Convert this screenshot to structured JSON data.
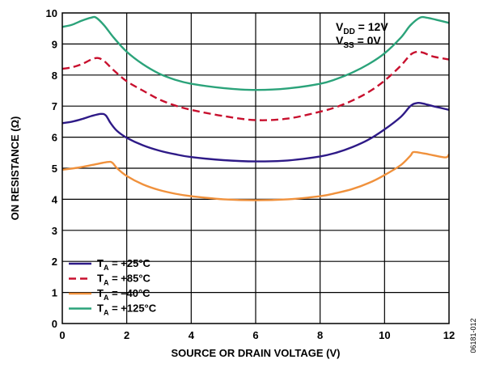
{
  "chart_data": {
    "type": "line",
    "title": "",
    "xlabel": "SOURCE OR DRAIN VOLTAGE (V)",
    "ylabel": "ON RESISTANCE (Ω)",
    "xlim": [
      0,
      12
    ],
    "ylim": [
      0,
      10
    ],
    "x_ticks": [
      "0",
      "2",
      "4",
      "6",
      "8",
      "10",
      "12"
    ],
    "y_ticks": [
      "0",
      "1",
      "2",
      "3",
      "4",
      "5",
      "6",
      "7",
      "8",
      "9",
      "10"
    ],
    "grid": true,
    "legend_position": "bottom-left",
    "conditions": [
      {
        "main": "V",
        "sub": "DD",
        "rest": " = 12V"
      },
      {
        "main": "V",
        "sub": "SS",
        "rest": " = 0V"
      }
    ],
    "figure_id": "06181-012",
    "series": [
      {
        "legend_main": "T",
        "legend_sub": "A",
        "legend_rest": " = +25°C",
        "color": "#2e1a87",
        "dash": "solid",
        "points": [
          [
            0,
            6.45
          ],
          [
            0.3,
            6.5
          ],
          [
            0.6,
            6.58
          ],
          [
            0.9,
            6.68
          ],
          [
            1.2,
            6.75
          ],
          [
            1.35,
            6.7
          ],
          [
            1.5,
            6.45
          ],
          [
            1.7,
            6.2
          ],
          [
            2,
            5.98
          ],
          [
            2.5,
            5.74
          ],
          [
            3,
            5.57
          ],
          [
            3.5,
            5.45
          ],
          [
            4,
            5.36
          ],
          [
            5,
            5.26
          ],
          [
            6,
            5.22
          ],
          [
            7,
            5.25
          ],
          [
            8,
            5.38
          ],
          [
            8.5,
            5.5
          ],
          [
            9,
            5.68
          ],
          [
            9.5,
            5.92
          ],
          [
            10,
            6.25
          ],
          [
            10.5,
            6.65
          ],
          [
            10.8,
            7.0
          ],
          [
            11,
            7.1
          ],
          [
            11.2,
            7.08
          ],
          [
            11.5,
            7.0
          ],
          [
            12,
            6.88
          ]
        ]
      },
      {
        "legend_main": "T",
        "legend_sub": "A",
        "legend_rest": " = +85°C",
        "color": "#c8102e",
        "dash": "dashed",
        "points": [
          [
            0,
            8.2
          ],
          [
            0.3,
            8.25
          ],
          [
            0.6,
            8.35
          ],
          [
            0.9,
            8.5
          ],
          [
            1.1,
            8.55
          ],
          [
            1.3,
            8.45
          ],
          [
            1.6,
            8.15
          ],
          [
            2,
            7.8
          ],
          [
            2.5,
            7.5
          ],
          [
            3,
            7.22
          ],
          [
            3.5,
            7.02
          ],
          [
            4,
            6.88
          ],
          [
            5,
            6.68
          ],
          [
            6,
            6.55
          ],
          [
            7,
            6.6
          ],
          [
            8,
            6.82
          ],
          [
            8.5,
            6.97
          ],
          [
            9,
            7.18
          ],
          [
            9.5,
            7.45
          ],
          [
            10,
            7.82
          ],
          [
            10.5,
            8.3
          ],
          [
            10.8,
            8.65
          ],
          [
            11,
            8.75
          ],
          [
            11.2,
            8.72
          ],
          [
            11.5,
            8.6
          ],
          [
            12,
            8.5
          ]
        ]
      },
      {
        "legend_main": "T",
        "legend_sub": "A",
        "legend_rest": " = –40°C",
        "color": "#f0913c",
        "dash": "solid",
        "points": [
          [
            0,
            4.95
          ],
          [
            0.5,
            5.02
          ],
          [
            1,
            5.12
          ],
          [
            1.4,
            5.2
          ],
          [
            1.55,
            5.18
          ],
          [
            1.7,
            5.0
          ],
          [
            2,
            4.75
          ],
          [
            2.5,
            4.48
          ],
          [
            3,
            4.3
          ],
          [
            3.5,
            4.18
          ],
          [
            4,
            4.1
          ],
          [
            5,
            4.0
          ],
          [
            6,
            3.97
          ],
          [
            7,
            4.0
          ],
          [
            8,
            4.1
          ],
          [
            8.5,
            4.2
          ],
          [
            9,
            4.33
          ],
          [
            9.5,
            4.52
          ],
          [
            10,
            4.78
          ],
          [
            10.5,
            5.1
          ],
          [
            10.8,
            5.4
          ],
          [
            10.9,
            5.52
          ],
          [
            11.2,
            5.48
          ],
          [
            11.5,
            5.42
          ],
          [
            11.9,
            5.35
          ],
          [
            12,
            5.45
          ]
        ]
      },
      {
        "legend_main": "T",
        "legend_sub": "A",
        "legend_rest": " = +125°C",
        "color": "#2ba37a",
        "dash": "solid",
        "points": [
          [
            0,
            9.55
          ],
          [
            0.3,
            9.62
          ],
          [
            0.6,
            9.75
          ],
          [
            0.9,
            9.85
          ],
          [
            1.05,
            9.85
          ],
          [
            1.3,
            9.6
          ],
          [
            1.6,
            9.2
          ],
          [
            2,
            8.75
          ],
          [
            2.5,
            8.35
          ],
          [
            3,
            8.05
          ],
          [
            3.5,
            7.85
          ],
          [
            4,
            7.72
          ],
          [
            5,
            7.58
          ],
          [
            6,
            7.52
          ],
          [
            7,
            7.57
          ],
          [
            8,
            7.72
          ],
          [
            8.5,
            7.87
          ],
          [
            9,
            8.08
          ],
          [
            9.5,
            8.35
          ],
          [
            10,
            8.7
          ],
          [
            10.5,
            9.2
          ],
          [
            10.8,
            9.6
          ],
          [
            11.1,
            9.85
          ],
          [
            11.3,
            9.85
          ],
          [
            11.6,
            9.78
          ],
          [
            12,
            9.68
          ]
        ]
      }
    ]
  }
}
